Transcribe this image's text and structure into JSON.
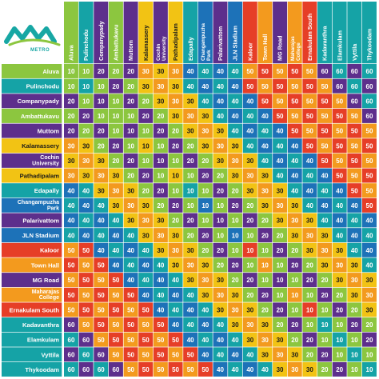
{
  "logo": {
    "text": "METRO",
    "icon": "kochi-metro-logo"
  },
  "colors": {
    "teal": "#15a3a6",
    "purple": "#5d2f8c",
    "green": "#8cc63f",
    "yellow": "#f2c314",
    "blue": "#1d72b8",
    "orange": "#f39a1e",
    "red": "#e63e27",
    "text_dark": "#1a1a1a",
    "text_light": "#ffffff"
  },
  "stations": [
    {
      "name": "Aluva",
      "lines": [
        "Aluva"
      ],
      "color": "green"
    },
    {
      "name": "Pulinchodu",
      "lines": [
        "Pulinchodu"
      ],
      "color": "teal"
    },
    {
      "name": "Companypady",
      "lines": [
        "Companypady"
      ],
      "color": "purple"
    },
    {
      "name": "Ambattukavu",
      "lines": [
        "Ambattukavu"
      ],
      "color": "green"
    },
    {
      "name": "Muttom",
      "lines": [
        "Muttom"
      ],
      "color": "purple"
    },
    {
      "name": "Kalamassery",
      "lines": [
        "Kalamassery"
      ],
      "color": "yellow"
    },
    {
      "name": "Cochin University",
      "lines": [
        "Cochin",
        "University"
      ],
      "color": "purple"
    },
    {
      "name": "Pathadipalam",
      "lines": [
        "Pathadipalam"
      ],
      "color": "yellow"
    },
    {
      "name": "Edapally",
      "lines": [
        "Edapally"
      ],
      "color": "teal"
    },
    {
      "name": "Changampuzha Park",
      "lines": [
        "Changampuzha",
        "Park"
      ],
      "color": "blue"
    },
    {
      "name": "Palarivattom",
      "lines": [
        "Palarivattom"
      ],
      "color": "purple"
    },
    {
      "name": "JLN Stadium",
      "lines": [
        "JLN Stadium"
      ],
      "color": "blue"
    },
    {
      "name": "Kaloor",
      "lines": [
        "Kaloor"
      ],
      "color": "red"
    },
    {
      "name": "Town Hall",
      "lines": [
        "Town Hall"
      ],
      "color": "orange"
    },
    {
      "name": "MG Road",
      "lines": [
        "MG Road"
      ],
      "color": "purple"
    },
    {
      "name": "Maharajas College",
      "lines": [
        "Maharajas",
        "College"
      ],
      "color": "orange"
    },
    {
      "name": "Ernakulam South",
      "lines": [
        "Ernakulam South"
      ],
      "color": "red"
    },
    {
      "name": "Kadavanthra",
      "lines": [
        "Kadavanthra"
      ],
      "color": "teal"
    },
    {
      "name": "Elamkulam",
      "lines": [
        "Elamkulam"
      ],
      "color": "teal"
    },
    {
      "name": "Vyttila",
      "lines": [
        "Vyttila"
      ],
      "color": "teal"
    },
    {
      "name": "Thykoodam",
      "lines": [
        "Thykoodam"
      ],
      "color": "teal"
    }
  ],
  "chart_data": {
    "type": "table",
    "rows": [
      "Aluva",
      "Pulinchodu",
      "Companypady",
      "Ambattukavu",
      "Muttom",
      "Kalamassery",
      "Cochin University",
      "Pathadipalam",
      "Edapally",
      "Changampuzha Park",
      "Palarivattom",
      "JLN Stadium",
      "Kaloor",
      "Town Hall",
      "MG Road",
      "Maharajas College",
      "Ernakulam South",
      "Kadavanthra",
      "Elamkulam",
      "Vyttila",
      "Thykoodam"
    ],
    "columns": [
      "Aluva",
      "Pulinchodu",
      "Companypady",
      "Ambattukavu",
      "Muttom",
      "Kalamassery",
      "Cochin University",
      "Pathadipalam",
      "Edapally",
      "Changampuzha Park",
      "Palarivattom",
      "JLN Stadium",
      "Kaloor",
      "Town Hall",
      "MG Road",
      "Maharajas College",
      "Ernakulam South",
      "Kadavanthra",
      "Elamkulam",
      "Vyttila",
      "Thykoodam"
    ],
    "values": [
      [
        10,
        10,
        20,
        20,
        20,
        30,
        30,
        30,
        40,
        40,
        40,
        40,
        50,
        50,
        50,
        50,
        50,
        60,
        60,
        60,
        60
      ],
      [
        10,
        10,
        10,
        20,
        20,
        30,
        30,
        30,
        40,
        40,
        40,
        40,
        50,
        50,
        50,
        50,
        50,
        50,
        60,
        60,
        60
      ],
      [
        20,
        10,
        10,
        10,
        20,
        20,
        30,
        30,
        30,
        40,
        40,
        40,
        40,
        50,
        50,
        50,
        50,
        50,
        50,
        60,
        60
      ],
      [
        20,
        20,
        10,
        10,
        10,
        20,
        20,
        30,
        30,
        30,
        40,
        40,
        40,
        40,
        50,
        50,
        50,
        50,
        50,
        50,
        60
      ],
      [
        20,
        20,
        20,
        10,
        10,
        10,
        20,
        20,
        30,
        30,
        30,
        40,
        40,
        40,
        40,
        50,
        50,
        50,
        50,
        50,
        50
      ],
      [
        30,
        30,
        20,
        20,
        10,
        10,
        10,
        20,
        20,
        30,
        30,
        30,
        40,
        40,
        40,
        40,
        50,
        50,
        50,
        50,
        50
      ],
      [
        30,
        30,
        30,
        20,
        20,
        10,
        10,
        10,
        20,
        20,
        30,
        30,
        30,
        40,
        40,
        40,
        40,
        50,
        50,
        50,
        50
      ],
      [
        30,
        30,
        30,
        30,
        20,
        20,
        10,
        10,
        10,
        20,
        20,
        30,
        30,
        30,
        40,
        40,
        40,
        40,
        50,
        50,
        50
      ],
      [
        40,
        40,
        30,
        30,
        30,
        20,
        20,
        10,
        10,
        10,
        20,
        20,
        30,
        30,
        30,
        40,
        40,
        40,
        40,
        50,
        50
      ],
      [
        40,
        40,
        40,
        30,
        30,
        30,
        20,
        20,
        10,
        10,
        10,
        20,
        20,
        30,
        30,
        30,
        40,
        40,
        40,
        40,
        50
      ],
      [
        40,
        40,
        40,
        40,
        30,
        30,
        30,
        20,
        20,
        10,
        10,
        10,
        20,
        20,
        30,
        30,
        30,
        40,
        40,
        40,
        40
      ],
      [
        40,
        40,
        40,
        40,
        40,
        30,
        30,
        30,
        20,
        20,
        10,
        10,
        10,
        20,
        20,
        30,
        30,
        30,
        40,
        40,
        40
      ],
      [
        50,
        50,
        40,
        40,
        40,
        40,
        30,
        30,
        30,
        20,
        20,
        10,
        10,
        10,
        20,
        20,
        30,
        30,
        30,
        40,
        40
      ],
      [
        50,
        50,
        50,
        40,
        40,
        40,
        40,
        30,
        30,
        30,
        20,
        20,
        10,
        10,
        10,
        20,
        20,
        30,
        30,
        30,
        40
      ],
      [
        50,
        50,
        50,
        50,
        40,
        40,
        40,
        40,
        30,
        30,
        30,
        20,
        20,
        10,
        10,
        10,
        20,
        20,
        30,
        30,
        30
      ],
      [
        50,
        50,
        50,
        50,
        50,
        40,
        40,
        40,
        40,
        30,
        30,
        30,
        20,
        20,
        10,
        10,
        10,
        20,
        20,
        30,
        30
      ],
      [
        50,
        50,
        50,
        50,
        50,
        50,
        40,
        40,
        40,
        40,
        30,
        30,
        30,
        20,
        20,
        10,
        10,
        10,
        20,
        20,
        30
      ],
      [
        60,
        50,
        50,
        50,
        50,
        50,
        50,
        40,
        40,
        40,
        40,
        30,
        30,
        30,
        20,
        20,
        10,
        10,
        10,
        20,
        20
      ],
      [
        60,
        60,
        50,
        50,
        50,
        50,
        50,
        50,
        40,
        40,
        40,
        40,
        30,
        30,
        30,
        20,
        20,
        10,
        10,
        10,
        20
      ],
      [
        60,
        60,
        60,
        50,
        50,
        50,
        50,
        50,
        50,
        40,
        40,
        40,
        40,
        30,
        30,
        30,
        20,
        20,
        10,
        10,
        10
      ],
      [
        60,
        60,
        60,
        60,
        50,
        50,
        50,
        50,
        50,
        50,
        40,
        40,
        40,
        40,
        30,
        30,
        30,
        20,
        20,
        10,
        10
      ]
    ]
  }
}
